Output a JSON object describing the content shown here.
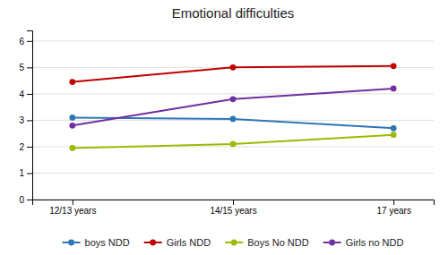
{
  "chart_data": {
    "type": "line",
    "title": "Emotional difficulties",
    "categories": [
      "12/13 years",
      "14/15 years",
      "17 years"
    ],
    "series": [
      {
        "name": "boys NDD",
        "color": "#2E75B6",
        "marker": "circle",
        "values": [
          3.1,
          3.05,
          2.7
        ]
      },
      {
        "name": "Girls NDD",
        "color": "#C00000",
        "marker": "circle",
        "values": [
          4.45,
          5.0,
          5.05
        ]
      },
      {
        "name": "Boys No NDD",
        "color": "#9BBB00",
        "marker": "circle",
        "values": [
          1.95,
          2.1,
          2.45
        ]
      },
      {
        "name": "Girls no NDD",
        "color": "#7030A0",
        "marker": "circle",
        "values": [
          2.8,
          3.8,
          4.2
        ]
      }
    ],
    "ylim": [
      0,
      6.4
    ],
    "yticks": [
      0,
      1,
      2,
      3,
      4,
      5,
      6
    ],
    "grid": true,
    "legend": "bottom"
  }
}
